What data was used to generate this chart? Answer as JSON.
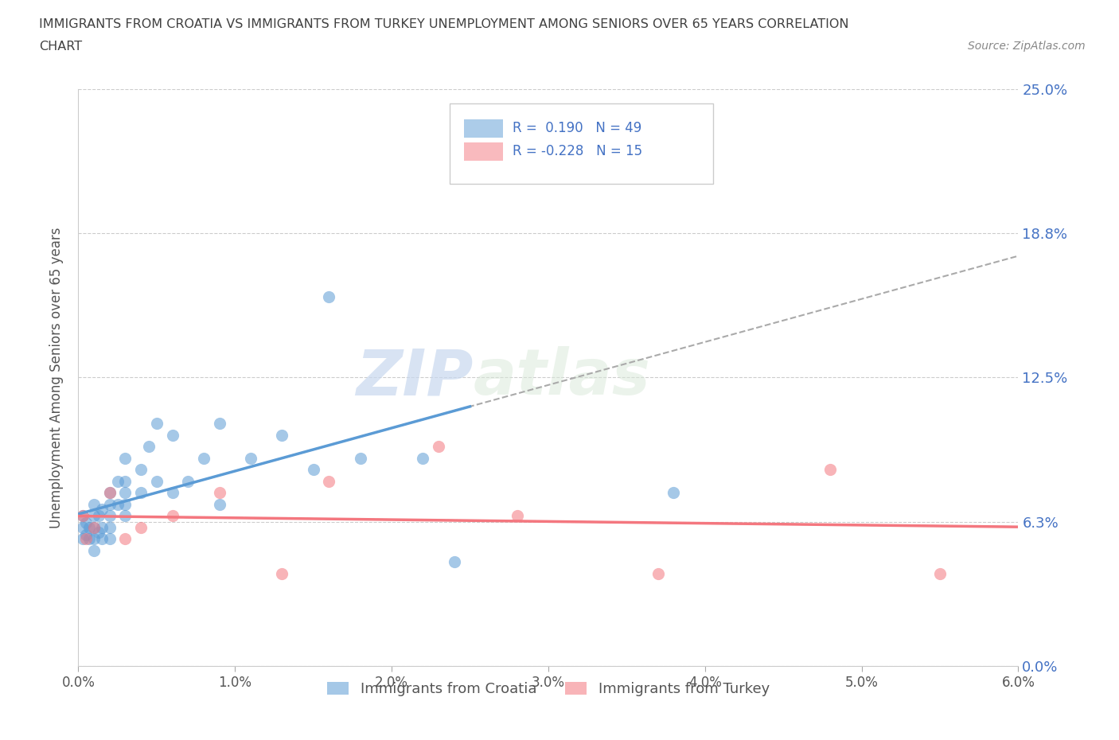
{
  "title_line1": "IMMIGRANTS FROM CROATIA VS IMMIGRANTS FROM TURKEY UNEMPLOYMENT AMONG SENIORS OVER 65 YEARS CORRELATION",
  "title_line2": "CHART",
  "source": "Source: ZipAtlas.com",
  "ylabel": "Unemployment Among Seniors over 65 years",
  "xlim": [
    0.0,
    0.06
  ],
  "ylim": [
    0.0,
    0.25
  ],
  "yticks": [
    0.0,
    0.0625,
    0.125,
    0.1875,
    0.25
  ],
  "ytick_labels": [
    "0.0%",
    "6.3%",
    "12.5%",
    "18.8%",
    "25.0%"
  ],
  "xticks": [
    0.0,
    0.01,
    0.02,
    0.03,
    0.04,
    0.05,
    0.06
  ],
  "xtick_labels": [
    "0.0%",
    "1.0%",
    "2.0%",
    "3.0%",
    "4.0%",
    "5.0%",
    "6.0%"
  ],
  "croatia_color": "#5b9bd5",
  "turkey_color": "#f4777f",
  "croatia_R": 0.19,
  "croatia_N": 49,
  "turkey_R": -0.228,
  "turkey_N": 15,
  "watermark_zip": "ZIP",
  "watermark_atlas": "atlas",
  "croatia_scatter_x": [
    0.0003,
    0.0003,
    0.0003,
    0.0005,
    0.0005,
    0.0007,
    0.0007,
    0.001,
    0.001,
    0.001,
    0.001,
    0.001,
    0.0013,
    0.0013,
    0.0015,
    0.0015,
    0.0015,
    0.002,
    0.002,
    0.002,
    0.002,
    0.002,
    0.0025,
    0.0025,
    0.003,
    0.003,
    0.003,
    0.003,
    0.003,
    0.004,
    0.004,
    0.0045,
    0.005,
    0.005,
    0.006,
    0.006,
    0.007,
    0.008,
    0.009,
    0.009,
    0.011,
    0.013,
    0.015,
    0.016,
    0.018,
    0.022,
    0.024,
    0.031,
    0.038
  ],
  "croatia_scatter_y": [
    0.055,
    0.06,
    0.065,
    0.057,
    0.062,
    0.055,
    0.06,
    0.05,
    0.055,
    0.06,
    0.065,
    0.07,
    0.058,
    0.065,
    0.055,
    0.06,
    0.068,
    0.055,
    0.06,
    0.065,
    0.07,
    0.075,
    0.07,
    0.08,
    0.065,
    0.07,
    0.075,
    0.08,
    0.09,
    0.075,
    0.085,
    0.095,
    0.08,
    0.105,
    0.075,
    0.1,
    0.08,
    0.09,
    0.07,
    0.105,
    0.09,
    0.1,
    0.085,
    0.16,
    0.09,
    0.09,
    0.045,
    0.215,
    0.075
  ],
  "turkey_scatter_x": [
    0.0003,
    0.0005,
    0.001,
    0.002,
    0.003,
    0.004,
    0.006,
    0.009,
    0.013,
    0.016,
    0.023,
    0.028,
    0.037,
    0.048,
    0.055
  ],
  "turkey_scatter_y": [
    0.065,
    0.055,
    0.06,
    0.075,
    0.055,
    0.06,
    0.065,
    0.075,
    0.04,
    0.08,
    0.095,
    0.065,
    0.04,
    0.085,
    0.04
  ],
  "legend_label_croatia": "Immigrants from Croatia",
  "legend_label_turkey": "Immigrants from Turkey",
  "background_color": "#ffffff",
  "grid_color": "#cccccc",
  "legend_text_color": "#4472c4",
  "title_color": "#404040",
  "right_label_color": "#4472c4",
  "source_color": "#888888",
  "ylabel_color": "#555555",
  "xtick_color": "#555555"
}
